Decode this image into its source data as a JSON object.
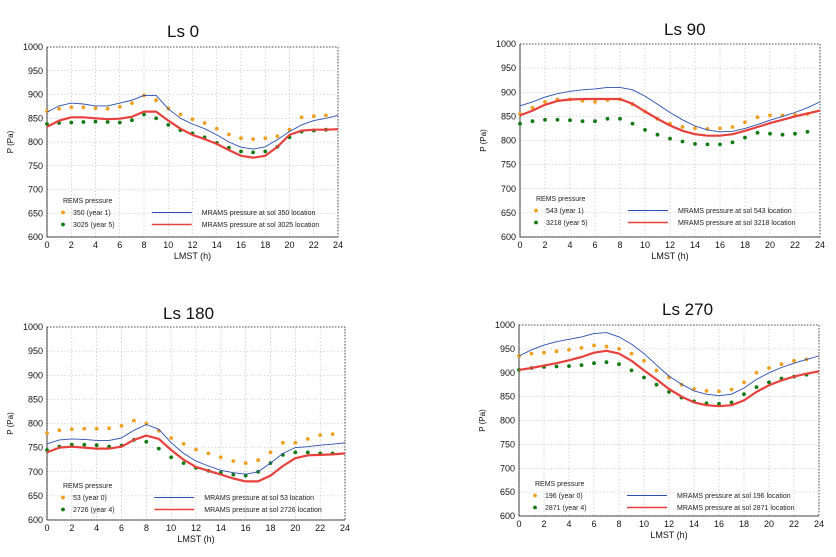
{
  "colors": {
    "year_a_dots": "#f0a020",
    "year_b_dots": "#127a12",
    "mrams_a_line": "#2a4fb0",
    "mrams_b_line": "#e8403c",
    "grid": "#b8b8b8"
  },
  "chart_data": [
    {
      "type": "line",
      "title": "Ls 0",
      "xlabel": "LMST (h)",
      "ylabel": "P (Pa)",
      "xlim": [
        0,
        24
      ],
      "ylim": [
        600,
        1000
      ],
      "xticks": [
        "0",
        "2",
        "4",
        "6",
        "8",
        "10",
        "12",
        "14",
        "16",
        "18",
        "20",
        "22",
        "24"
      ],
      "yticks": [
        "600",
        "650",
        "700",
        "750",
        "800",
        "850",
        "900",
        "950",
        "1000"
      ],
      "grid": true,
      "legend_title": "REMS pressure",
      "series": [
        {
          "name": "350 (year 1)",
          "kind": "dots",
          "color_key": "year_a_dots",
          "x": [
            0,
            1,
            2,
            3,
            4,
            5,
            6,
            7,
            8,
            9,
            10,
            11,
            12,
            13,
            14,
            15,
            16,
            17,
            18,
            19,
            20,
            21,
            22,
            23
          ],
          "y": [
            865,
            870,
            873,
            873,
            871,
            870,
            874,
            882,
            898,
            888,
            871,
            858,
            848,
            840,
            828,
            816,
            808,
            806,
            808,
            812,
            826,
            852,
            854,
            856
          ]
        },
        {
          "name": "3025 (year 5)",
          "kind": "dots",
          "color_key": "year_b_dots",
          "x": [
            0,
            1,
            2,
            3,
            4,
            5,
            6,
            7,
            8,
            9,
            10,
            11,
            12,
            13,
            14,
            15,
            16,
            17,
            18,
            19,
            20,
            21,
            22,
            23
          ],
          "y": [
            838,
            840,
            841,
            842,
            843,
            842,
            841,
            846,
            858,
            850,
            836,
            825,
            818,
            810,
            798,
            788,
            780,
            778,
            780,
            790,
            810,
            822,
            824,
            826
          ]
        },
        {
          "name": "MRAMS pressure at sol 350 location",
          "kind": "line",
          "color_key": "mrams_a_line",
          "x": [
            0,
            1,
            2,
            3,
            4,
            5,
            6,
            7,
            8,
            9,
            10,
            11,
            12,
            13,
            14,
            15,
            16,
            17,
            18,
            19,
            20,
            21,
            22,
            23,
            24
          ],
          "y": [
            863,
            876,
            882,
            880,
            876,
            876,
            882,
            888,
            898,
            898,
            870,
            850,
            838,
            828,
            815,
            800,
            789,
            785,
            790,
            805,
            822,
            836,
            845,
            850,
            856
          ]
        },
        {
          "name": "MRAMS pressure at sol 3025 location",
          "kind": "line",
          "color_key": "mrams_b_line",
          "x": [
            0,
            1,
            2,
            3,
            4,
            5,
            6,
            7,
            8,
            9,
            10,
            11,
            12,
            13,
            14,
            15,
            16,
            17,
            18,
            19,
            20,
            21,
            22,
            23,
            24
          ],
          "y": [
            832,
            845,
            852,
            852,
            850,
            848,
            849,
            853,
            864,
            864,
            845,
            828,
            815,
            806,
            796,
            783,
            771,
            767,
            771,
            790,
            815,
            824,
            826,
            826,
            827
          ]
        }
      ]
    },
    {
      "type": "line",
      "title": "Ls 90",
      "xlabel": "LMST (h)",
      "ylabel": "P (Pa)",
      "xlim": [
        0,
        24
      ],
      "ylim": [
        600,
        1000
      ],
      "xticks": [
        "0",
        "2",
        "4",
        "6",
        "8",
        "10",
        "12",
        "14",
        "16",
        "18",
        "20",
        "22",
        "24"
      ],
      "yticks": [
        "600",
        "650",
        "700",
        "750",
        "800",
        "850",
        "900",
        "950",
        "1000"
      ],
      "grid": true,
      "legend_title": "REMS pressure",
      "series": [
        {
          "name": "543 (year 1)",
          "kind": "dots",
          "color_key": "year_a_dots",
          "x": [
            0,
            1,
            2,
            3,
            4,
            5,
            6,
            7,
            8,
            9,
            10,
            11,
            12,
            13,
            14,
            15,
            16,
            17,
            18,
            19,
            20,
            21,
            22,
            23
          ],
          "y": [
            855,
            868,
            880,
            885,
            885,
            882,
            880,
            884,
            885,
            875,
            860,
            845,
            835,
            828,
            825,
            824,
            825,
            828,
            838,
            848,
            852,
            852,
            853,
            855
          ]
        },
        {
          "name": "3218 (year 5)",
          "kind": "dots",
          "color_key": "year_b_dots",
          "x": [
            0,
            1,
            2,
            3,
            4,
            5,
            6,
            7,
            8,
            9,
            10,
            11,
            12,
            13,
            14,
            15,
            16,
            17,
            18,
            19,
            20,
            21,
            22,
            23
          ],
          "y": [
            835,
            840,
            843,
            843,
            842,
            840,
            840,
            845,
            845,
            835,
            822,
            812,
            804,
            798,
            793,
            792,
            792,
            796,
            806,
            816,
            814,
            812,
            814,
            818
          ]
        },
        {
          "name": "MRAMS pressure at sol 543 location",
          "kind": "line",
          "color_key": "mrams_a_line",
          "x": [
            0,
            1,
            2,
            3,
            4,
            5,
            6,
            7,
            8,
            9,
            10,
            11,
            12,
            13,
            14,
            15,
            16,
            17,
            18,
            19,
            20,
            21,
            22,
            23,
            24
          ],
          "y": [
            872,
            880,
            890,
            897,
            902,
            905,
            907,
            910,
            910,
            905,
            892,
            875,
            858,
            843,
            830,
            822,
            818,
            819,
            825,
            833,
            842,
            850,
            858,
            868,
            880
          ]
        },
        {
          "name": "MRAMS pressure at sol 3218 location",
          "kind": "line",
          "color_key": "mrams_b_line",
          "x": [
            0,
            1,
            2,
            3,
            4,
            5,
            6,
            7,
            8,
            9,
            10,
            11,
            12,
            13,
            14,
            15,
            16,
            17,
            18,
            19,
            20,
            21,
            22,
            23,
            24
          ],
          "y": [
            852,
            862,
            874,
            882,
            885,
            886,
            886,
            886,
            886,
            876,
            860,
            845,
            831,
            820,
            813,
            810,
            810,
            813,
            820,
            828,
            836,
            843,
            850,
            856,
            862
          ]
        }
      ]
    },
    {
      "type": "line",
      "title": "Ls 180",
      "xlabel": "LMST (h)",
      "ylabel": "P (Pa)",
      "xlim": [
        0,
        24
      ],
      "ylim": [
        600,
        1000
      ],
      "xticks": [
        "0",
        "2",
        "4",
        "6",
        "8",
        "10",
        "12",
        "14",
        "16",
        "18",
        "20",
        "22",
        "24"
      ],
      "yticks": [
        "600",
        "650",
        "700",
        "750",
        "800",
        "850",
        "900",
        "950",
        "1000"
      ],
      "grid": true,
      "legend_title": "REMS pressure",
      "series": [
        {
          "name": "53 (year 0)",
          "kind": "dots",
          "color_key": "year_a_dots",
          "x": [
            0,
            1,
            2,
            3,
            4,
            5,
            6,
            7,
            8,
            9,
            10,
            11,
            12,
            13,
            14,
            15,
            16,
            17,
            18,
            19,
            20,
            21,
            22,
            23
          ],
          "y": [
            780,
            786,
            788,
            789,
            789,
            790,
            795,
            806,
            800,
            785,
            770,
            758,
            746,
            738,
            730,
            722,
            718,
            724,
            740,
            760,
            760,
            768,
            776,
            778
          ]
        },
        {
          "name": "2726 (year 4)",
          "kind": "dots",
          "color_key": "year_b_dots",
          "x": [
            0,
            1,
            2,
            3,
            4,
            5,
            6,
            7,
            8,
            9,
            10,
            11,
            12,
            13,
            14,
            15,
            16,
            17,
            18,
            19,
            20,
            21,
            22,
            23
          ],
          "y": [
            745,
            752,
            756,
            756,
            755,
            752,
            754,
            766,
            762,
            748,
            730,
            718,
            708,
            702,
            698,
            694,
            692,
            700,
            718,
            735,
            740,
            740,
            738,
            738
          ]
        },
        {
          "name": "MRAMS pressure at sol 53 location",
          "kind": "line",
          "color_key": "mrams_a_line",
          "x": [
            0,
            1,
            2,
            3,
            4,
            5,
            6,
            7,
            8,
            9,
            10,
            11,
            12,
            13,
            14,
            15,
            16,
            17,
            18,
            19,
            20,
            21,
            22,
            23,
            24
          ],
          "y": [
            758,
            766,
            768,
            767,
            765,
            765,
            770,
            786,
            798,
            788,
            760,
            738,
            722,
            712,
            703,
            698,
            695,
            700,
            718,
            738,
            750,
            752,
            755,
            757,
            760
          ]
        },
        {
          "name": "MRAMS pressure at sol 2726 location",
          "kind": "line",
          "color_key": "mrams_b_line",
          "x": [
            0,
            1,
            2,
            3,
            4,
            5,
            6,
            7,
            8,
            9,
            10,
            11,
            12,
            13,
            14,
            15,
            16,
            17,
            18,
            19,
            20,
            21,
            22,
            23,
            24
          ],
          "y": [
            740,
            750,
            752,
            750,
            748,
            748,
            752,
            766,
            775,
            768,
            745,
            725,
            710,
            702,
            694,
            686,
            680,
            680,
            692,
            712,
            728,
            734,
            735,
            736,
            738
          ]
        }
      ]
    },
    {
      "type": "line",
      "title": "Ls 270",
      "xlabel": "LMST (h)",
      "ylabel": "P (Pa)",
      "xlim": [
        0,
        24
      ],
      "ylim": [
        600,
        1000
      ],
      "xticks": [
        "0",
        "2",
        "4",
        "6",
        "8",
        "10",
        "12",
        "14",
        "16",
        "18",
        "20",
        "22",
        "24"
      ],
      "yticks": [
        "600",
        "650",
        "700",
        "750",
        "800",
        "850",
        "900",
        "950",
        "1000"
      ],
      "grid": true,
      "legend_title": "REMS pressure",
      "series": [
        {
          "name": "196 (year 0)",
          "kind": "dots",
          "color_key": "year_a_dots",
          "x": [
            0,
            1,
            2,
            3,
            4,
            5,
            6,
            7,
            8,
            9,
            10,
            11,
            12,
            13,
            14,
            15,
            16,
            17,
            18,
            19,
            20,
            21,
            22,
            23
          ],
          "y": [
            935,
            940,
            942,
            945,
            948,
            952,
            957,
            955,
            950,
            940,
            925,
            905,
            890,
            875,
            866,
            862,
            861,
            865,
            880,
            900,
            910,
            918,
            925,
            928
          ]
        },
        {
          "name": "2871 (year 4)",
          "kind": "dots",
          "color_key": "year_b_dots",
          "x": [
            0,
            1,
            2,
            3,
            4,
            5,
            6,
            7,
            8,
            9,
            10,
            11,
            12,
            13,
            14,
            15,
            16,
            17,
            18,
            19,
            20,
            21,
            22,
            23
          ],
          "y": [
            906,
            910,
            912,
            913,
            914,
            916,
            920,
            922,
            918,
            905,
            890,
            875,
            860,
            848,
            840,
            836,
            835,
            838,
            855,
            870,
            880,
            888,
            892,
            896
          ]
        },
        {
          "name": "MRAMS pressure at sol 196 location",
          "kind": "line",
          "color_key": "mrams_a_line",
          "x": [
            0,
            1,
            2,
            3,
            4,
            5,
            6,
            7,
            8,
            9,
            10,
            11,
            12,
            13,
            14,
            15,
            16,
            17,
            18,
            19,
            20,
            21,
            22,
            23,
            24
          ],
          "y": [
            935,
            948,
            958,
            965,
            970,
            975,
            982,
            984,
            975,
            960,
            940,
            916,
            893,
            876,
            862,
            855,
            852,
            855,
            868,
            886,
            900,
            911,
            920,
            928,
            935
          ]
        },
        {
          "name": "MRAMS pressure at sol 2871 location",
          "kind": "line",
          "color_key": "mrams_b_line",
          "x": [
            0,
            1,
            2,
            3,
            4,
            5,
            6,
            7,
            8,
            9,
            10,
            11,
            12,
            13,
            14,
            15,
            16,
            17,
            18,
            19,
            20,
            21,
            22,
            23,
            24
          ],
          "y": [
            906,
            910,
            915,
            920,
            926,
            933,
            942,
            946,
            940,
            925,
            905,
            886,
            866,
            850,
            838,
            832,
            830,
            832,
            842,
            860,
            874,
            884,
            892,
            898,
            903
          ]
        }
      ]
    }
  ]
}
